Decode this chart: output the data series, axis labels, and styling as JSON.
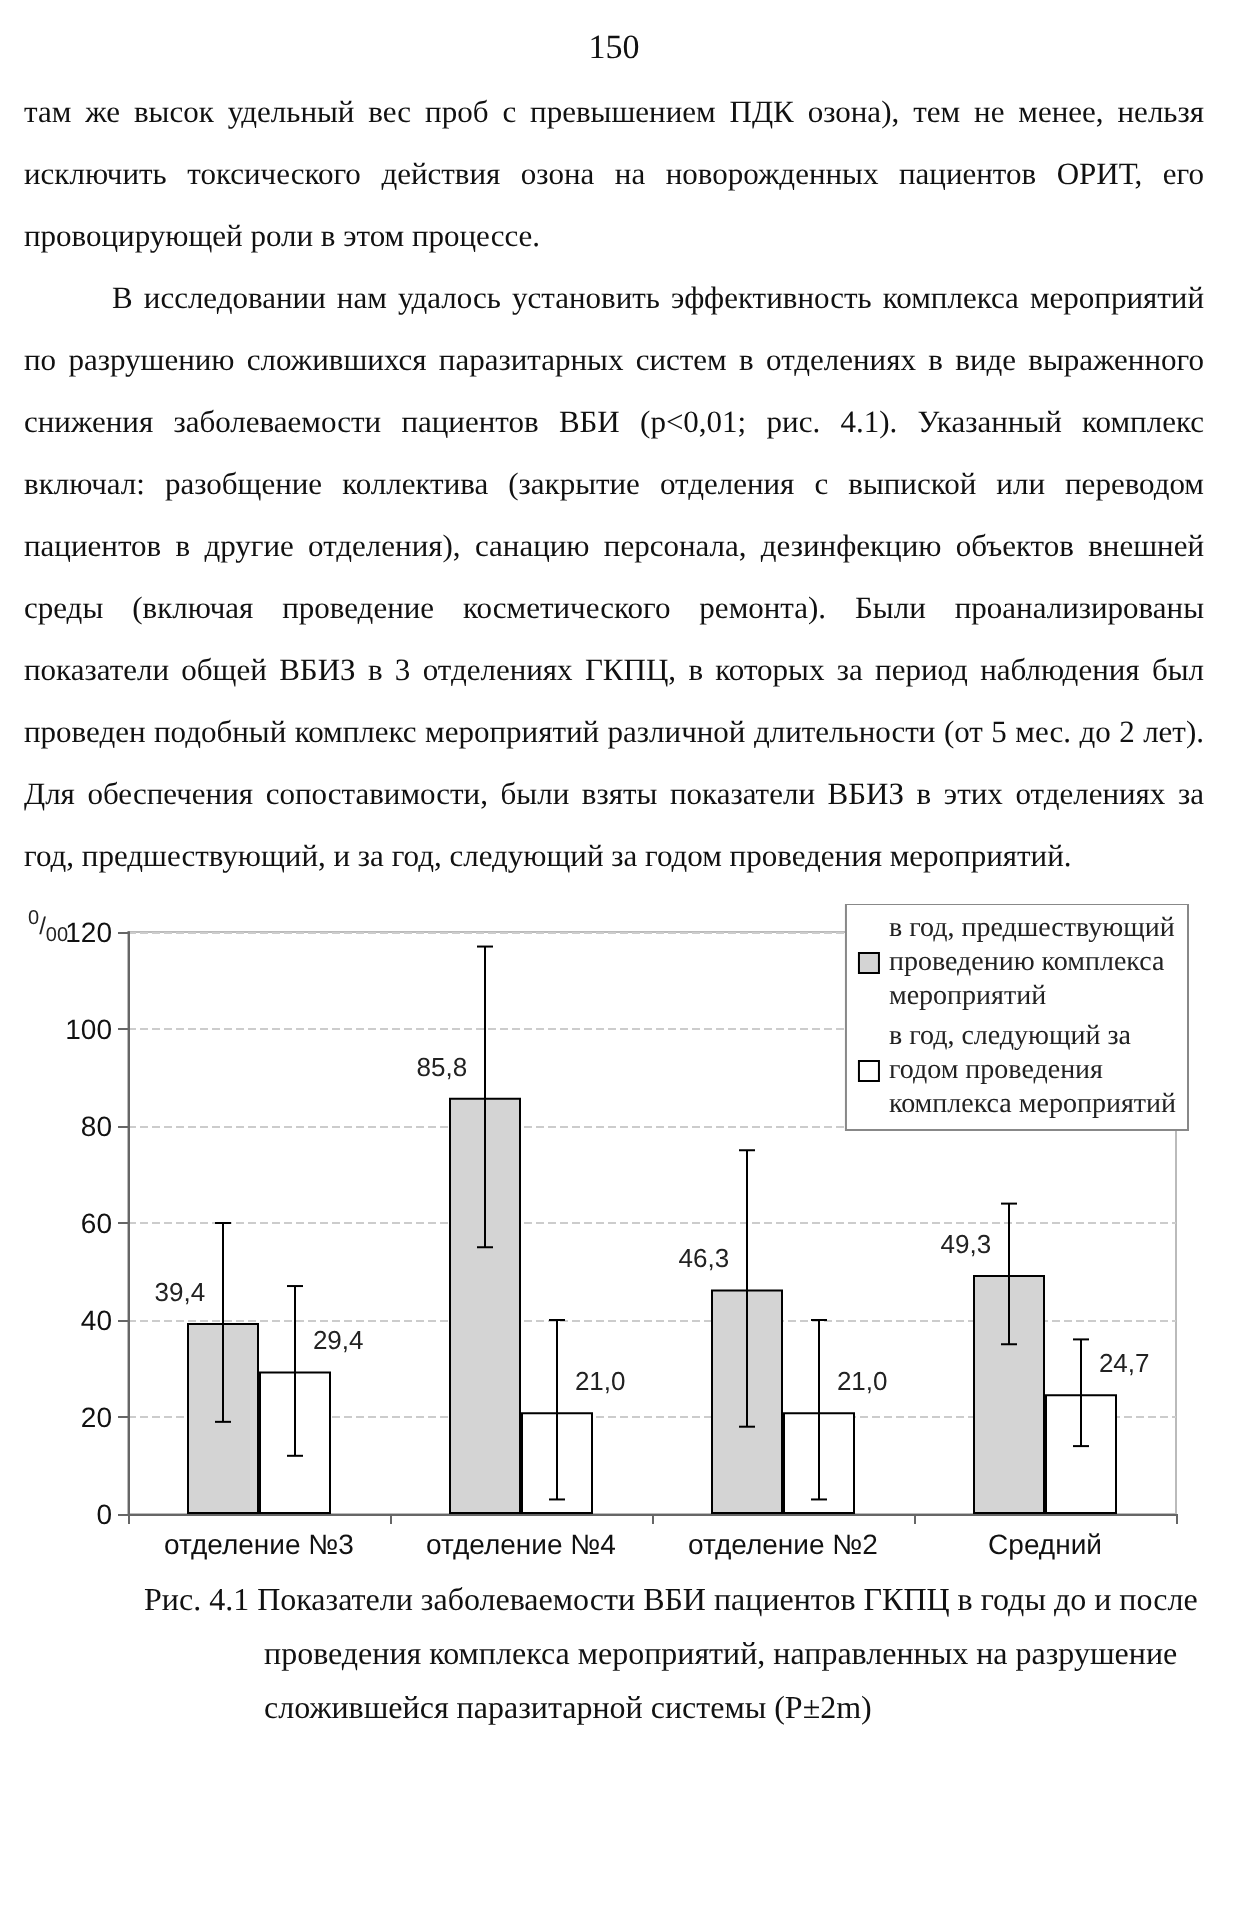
{
  "chart_data": {
    "type": "bar",
    "title": "Рис. 4.1 Показатели заболеваемости ВБИ пациентов ГКПЦ в годы до и после проведения комплекса мероприятий, направленных на разрушение сложившейся паразитарной системы (P±2m)",
    "ylabel": "$^{0}$/$_{00}$",
    "annotations": [
      "150",
      "там же высок удельный вес проб с превышением ПДК озона), тем не менее, нельзя исключить токсического действия озона на новорожденных пациентов ОРИТ, его провоцирующей роли в этом процессе.",
      "В исследовании нам удалось установить эффективность комплекса мероприятий по разрушению сложившихся паразитарных систем в отделениях в виде выраженного снижения заболеваемости пациентов ВБИ (p<0,01; рис. 4.1). Указанный комплекс включал: разобщение коллектива (закрытие отделения с выпиской или переводом пациентов в другие отделения), санацию персонала, дезинфекцию объектов внешней среды (включая проведение косметического ремонта). Были проанализированы показатели общей ВБИЗ в 3 отделениях ГКПЦ, в которых за период наблюдения был проведен подобный комплекс мероприятий различной длительности (от 5 мес. до 2 лет). Для обеспечения сопоставимости, были взяты показатели ВБИЗ в этих отделениях за год, предшествующий, и за год, следующий за годом проведения мероприятий."
    ],
    "categories": [
      "отделение №3",
      "отделение №4",
      "отделение №2",
      "Средний"
    ],
    "series": [
      {
        "name": "в год, предшествующий проведению комплекса мероприятий",
        "color": "#d4d4d4",
        "values": [
          39.4,
          85.8,
          46.3,
          49.3
        ],
        "value_labels": [
          "39,4",
          "85,8",
          "46,3",
          "49,3"
        ],
        "errors": [
          [
            19,
            60
          ],
          [
            55,
            117
          ],
          [
            18,
            75
          ],
          [
            35,
            64
          ]
        ]
      },
      {
        "name": "в год, следующий за годом проведения комплекса мероприятий",
        "color": "#ffffff",
        "values": [
          29.4,
          21.0,
          21.0,
          24.7
        ],
        "value_labels": [
          "29,4",
          "21,0",
          "21,0",
          "24,7"
        ],
        "errors": [
          [
            12,
            47
          ],
          [
            3,
            40
          ],
          [
            3,
            40
          ],
          [
            14,
            36
          ]
        ]
      }
    ],
    "ylim": [
      0,
      120
    ],
    "yticks": [
      0,
      20,
      40,
      60,
      80,
      100,
      120
    ],
    "grid": "y",
    "legend": "top right"
  }
}
